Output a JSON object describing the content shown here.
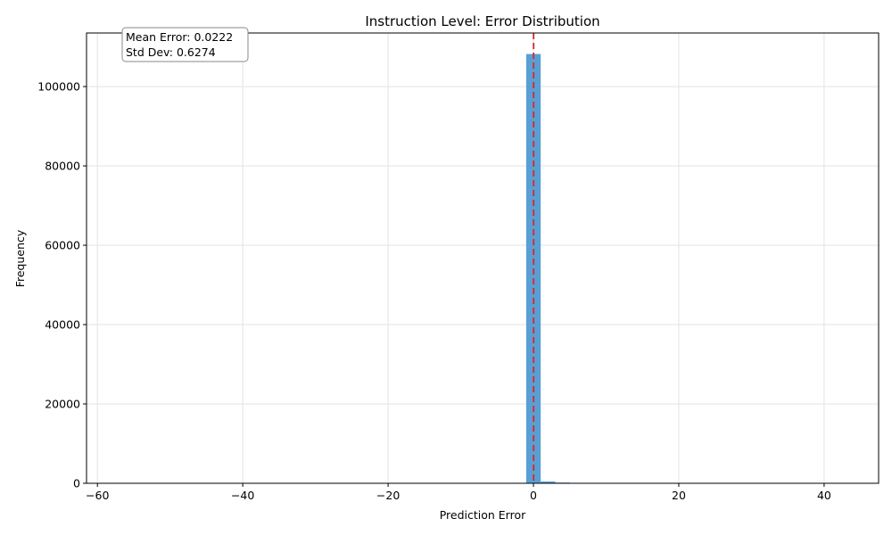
{
  "chart_data": {
    "type": "bar",
    "title": "Instruction Level: Error Distribution",
    "xlabel": "Prediction Error",
    "ylabel": "Frequency",
    "xlim": [
      -61.5,
      47.5
    ],
    "ylim": [
      0,
      113500
    ],
    "xticks": [
      -60,
      -40,
      -20,
      0,
      20,
      40
    ],
    "xtick_labels": [
      "−60",
      "−40",
      "−20",
      "0",
      "20",
      "40"
    ],
    "yticks": [
      0,
      20000,
      40000,
      60000,
      80000,
      100000
    ],
    "ytick_labels": [
      "0",
      "20000",
      "40000",
      "60000",
      "80000",
      "100000"
    ],
    "grid": true,
    "bar_color": "#5a9fd4",
    "bin_width": 2,
    "bins": [
      {
        "x0": -3,
        "x1": -1,
        "value": 120
      },
      {
        "x0": -1,
        "x1": 1,
        "value": 108200
      },
      {
        "x0": 1,
        "x1": 3,
        "value": 450
      },
      {
        "x0": 3,
        "x1": 5,
        "value": 180
      }
    ],
    "mean_line": {
      "x": 0.0222,
      "color": "#d62728",
      "style": "dashed"
    },
    "annotation": {
      "lines": [
        "Mean Error: 0.0222",
        "Std Dev: 0.6274"
      ],
      "position": "top-left"
    }
  }
}
